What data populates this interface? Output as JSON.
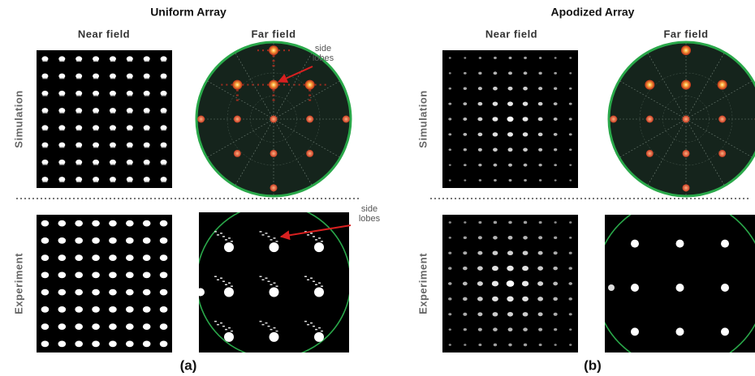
{
  "panels": [
    {
      "title": "Uniform Array",
      "columns": [
        "Near field",
        "Far field"
      ],
      "rows": [
        "Simulation",
        "Experiment"
      ],
      "annotation_sim": [
        "side",
        "lobes"
      ],
      "annotation_exp": [
        "side",
        "lobes"
      ],
      "label": "(a)"
    },
    {
      "title": "Apodized Array",
      "columns": [
        "Near field",
        "Far field"
      ],
      "rows": [
        "Simulation",
        "Experiment"
      ],
      "label": "(b)"
    }
  ]
}
